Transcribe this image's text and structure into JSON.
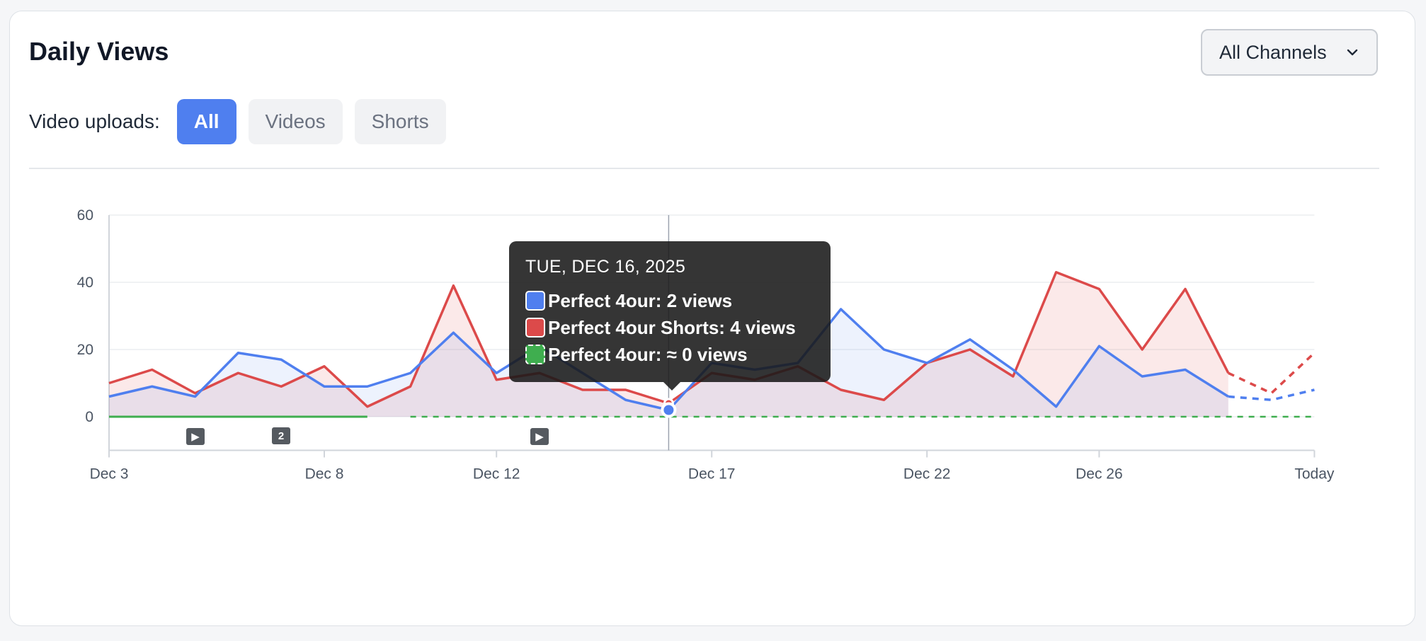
{
  "header": {
    "title": "Daily Views",
    "channel_select": {
      "value": "All Channels",
      "icon": "chevron-down-icon"
    }
  },
  "filters": {
    "label": "Video uploads:",
    "options": [
      {
        "label": "All",
        "active": true
      },
      {
        "label": "Videos",
        "active": false
      },
      {
        "label": "Shorts",
        "active": false
      }
    ]
  },
  "upload_markers": [
    {
      "day": 4,
      "type": "play",
      "label": ""
    },
    {
      "day": 8,
      "type": "count",
      "label": "2"
    },
    {
      "day": 20,
      "type": "play",
      "label": ""
    }
  ],
  "tooltip": {
    "date": "TUE, DEC 16, 2025",
    "rows": [
      {
        "color": "#4f7fef",
        "text": "Perfect 4our: 2 views"
      },
      {
        "color": "#dc4a4a",
        "text": "Perfect 4our Shorts: 4 views"
      },
      {
        "color": "#3fae4f",
        "text": "Perfect 4our: ≈ 0 views"
      }
    ]
  },
  "chart_data": {
    "type": "area",
    "x_tick_labels": [
      "Dec 3",
      "Dec 8",
      "Dec 12",
      "Dec 17",
      "Dec 22",
      "Dec 26",
      "Today"
    ],
    "x_tick_days": [
      0,
      10,
      18,
      28,
      38,
      46,
      56
    ],
    "ylim": [
      -10,
      60
    ],
    "y_ticks": [
      0,
      20,
      40,
      60
    ],
    "grid": true,
    "hover_day": 26,
    "series": [
      {
        "color": "#4f7fef",
        "fill": "rgba(79,127,239,0.10)",
        "values": [
          6,
          9,
          6,
          19,
          17,
          9,
          9,
          13,
          25,
          13,
          21,
          13,
          5,
          2,
          16,
          14,
          16,
          32,
          20,
          16,
          23,
          14,
          3,
          21,
          12,
          14,
          6
        ],
        "forecast": [
          6,
          5,
          8
        ]
      },
      {
        "color": "#dc4a4a",
        "fill": "rgba(220,74,74,0.12)",
        "values": [
          10,
          14,
          7,
          13,
          9,
          15,
          3,
          9,
          39,
          11,
          13,
          8,
          8,
          4,
          13,
          11,
          15,
          8,
          5,
          16,
          20,
          12,
          43,
          38,
          20,
          38,
          13
        ],
        "forecast": [
          13,
          7,
          19
        ]
      },
      {
        "color": "#3fae4f",
        "fill": "none",
        "values": [
          0,
          0,
          0,
          0,
          0,
          0,
          0
        ],
        "dashed_values": [
          0,
          0,
          0,
          0,
          0,
          0,
          0,
          0,
          0,
          0,
          0,
          0,
          0,
          0,
          0,
          0,
          0,
          0,
          0,
          0,
          0,
          0
        ],
        "forecast": [
          0,
          0,
          0
        ]
      }
    ]
  }
}
